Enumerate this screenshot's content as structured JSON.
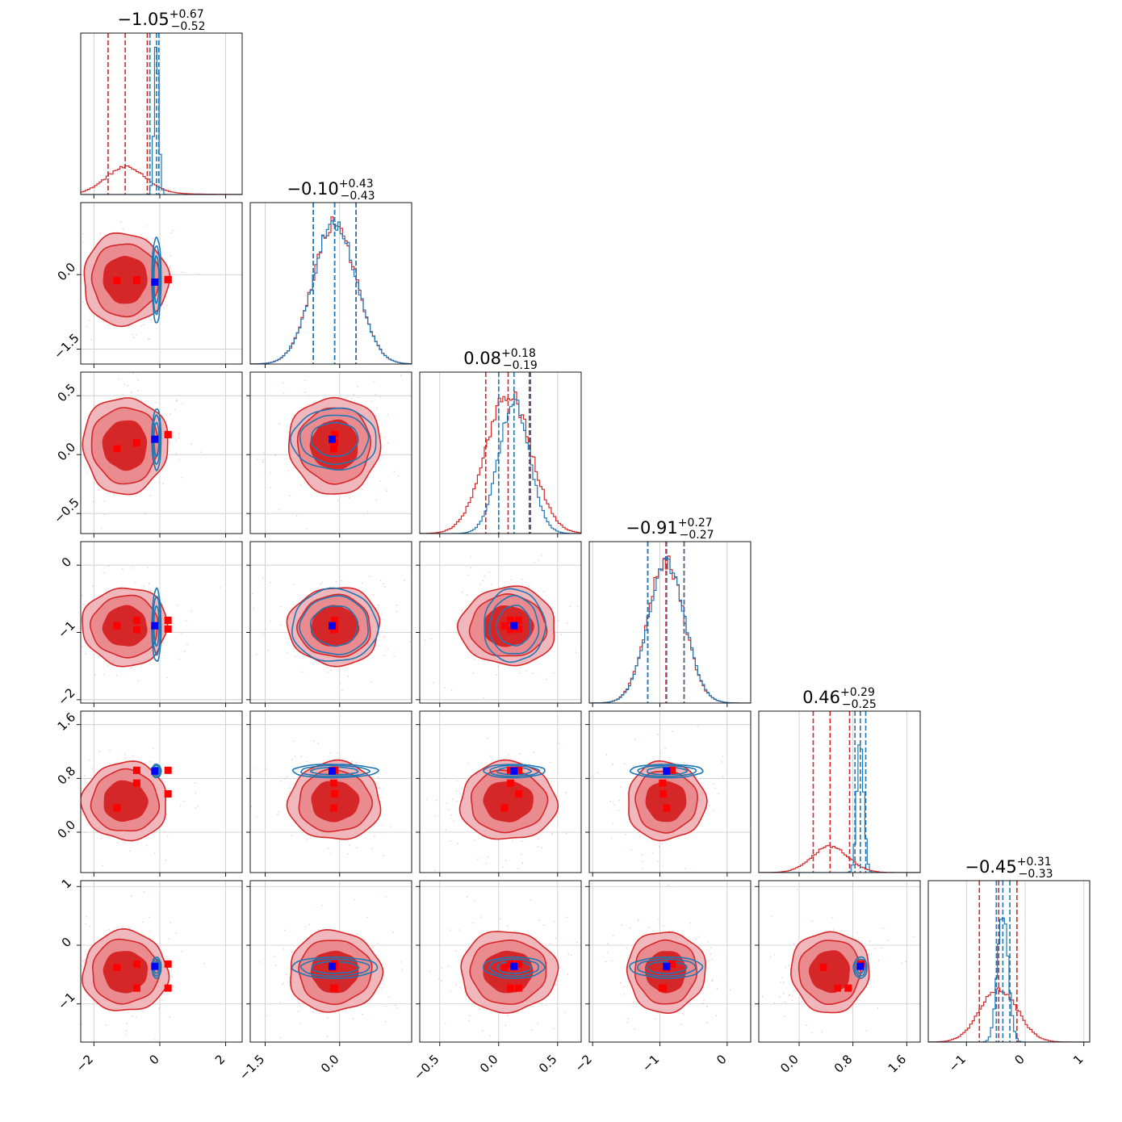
{
  "chart_data": {
    "type": "corner",
    "n_params": 6,
    "colors": {
      "red": "#d62728",
      "blue": "#1f77b4",
      "red_marker": "#ff0000",
      "blue_marker": "#0000ff"
    },
    "grid": true,
    "params": [
      {
        "range": [
          -2.4,
          2.5
        ],
        "ticks": [
          -2,
          0,
          2
        ],
        "tick_labels": [
          "−2",
          "0",
          "2"
        ],
        "title": {
          "main": "−1.05",
          "plus": "+0.67",
          "minus": "−0.52"
        }
      },
      {
        "range": [
          -1.8,
          1.45
        ],
        "ticks": [
          -1.5,
          0.0
        ],
        "tick_labels": [
          "−1.5",
          "0.0"
        ],
        "title": {
          "main": "−0.10",
          "plus": "+0.43",
          "minus": "−0.43"
        }
      },
      {
        "range": [
          -0.67,
          0.7
        ],
        "ticks": [
          -0.5,
          0.0,
          0.5
        ],
        "tick_labels": [
          "−0.5",
          "0.0",
          "0.5"
        ],
        "title": {
          "main": "0.08",
          "plus": "+0.18",
          "minus": "−0.19"
        }
      },
      {
        "range": [
          -2.05,
          0.35
        ],
        "ticks": [
          -2,
          -1,
          0
        ],
        "tick_labels": [
          "−2",
          "−1",
          "0"
        ],
        "title": {
          "main": "−0.91",
          "plus": "+0.27",
          "minus": "−0.27"
        }
      },
      {
        "range": [
          -0.6,
          1.8
        ],
        "ticks": [
          0.0,
          0.8,
          1.6
        ],
        "tick_labels": [
          "0.0",
          "0.8",
          "1.6"
        ],
        "title": {
          "main": "0.46",
          "plus": "+0.29",
          "minus": "−0.25"
        }
      },
      {
        "range": [
          -1.65,
          1.1
        ],
        "ticks": [
          -1,
          0,
          1
        ],
        "tick_labels": [
          "−1",
          "0",
          "1"
        ],
        "title": {
          "main": "−0.45",
          "plus": "+0.31",
          "minus": "−0.33"
        }
      }
    ],
    "red": {
      "mean": [
        -1.05,
        -0.1,
        0.08,
        -0.91,
        0.46,
        -0.45
      ],
      "std": [
        0.6,
        0.43,
        0.19,
        0.27,
        0.27,
        0.32
      ],
      "quantiles": [
        [
          -1.57,
          -0.38
        ],
        [
          -0.53,
          0.33
        ],
        [
          -0.11,
          0.26
        ],
        [
          -1.18,
          -0.64
        ],
        [
          0.21,
          0.75
        ],
        [
          -0.78,
          -0.14
        ]
      ]
    },
    "blue": {
      "mean": [
        -0.1,
        -0.1,
        0.13,
        -0.9,
        0.91,
        -0.38
      ],
      "std": [
        0.07,
        0.43,
        0.13,
        0.27,
        0.05,
        0.09
      ],
      "quantiles": [
        [
          -0.3,
          -0.03
        ],
        [
          -0.53,
          0.33
        ],
        [
          0.0,
          0.27
        ],
        [
          -1.18,
          -0.64
        ],
        [
          0.83,
          0.99
        ],
        [
          -0.49,
          -0.26
        ]
      ]
    },
    "red_markers": [
      [
        -1.3,
        -0.12,
        0.05,
        -0.9,
        0.36,
        -0.38
      ],
      [
        -0.7,
        -0.12,
        0.1,
        -0.96,
        0.73,
        -0.73
      ],
      [
        0.25,
        -0.1,
        0.17,
        -0.82,
        0.92,
        -0.32
      ],
      [
        0.25,
        -0.1,
        0.17,
        -0.95,
        0.57,
        -0.73
      ],
      [
        -0.7,
        -0.1,
        0.1,
        -0.82,
        0.92,
        -0.32
      ]
    ],
    "blue_marker": [
      -0.15,
      -0.15,
      0.13,
      -0.9,
      0.91,
      -0.36
    ]
  }
}
